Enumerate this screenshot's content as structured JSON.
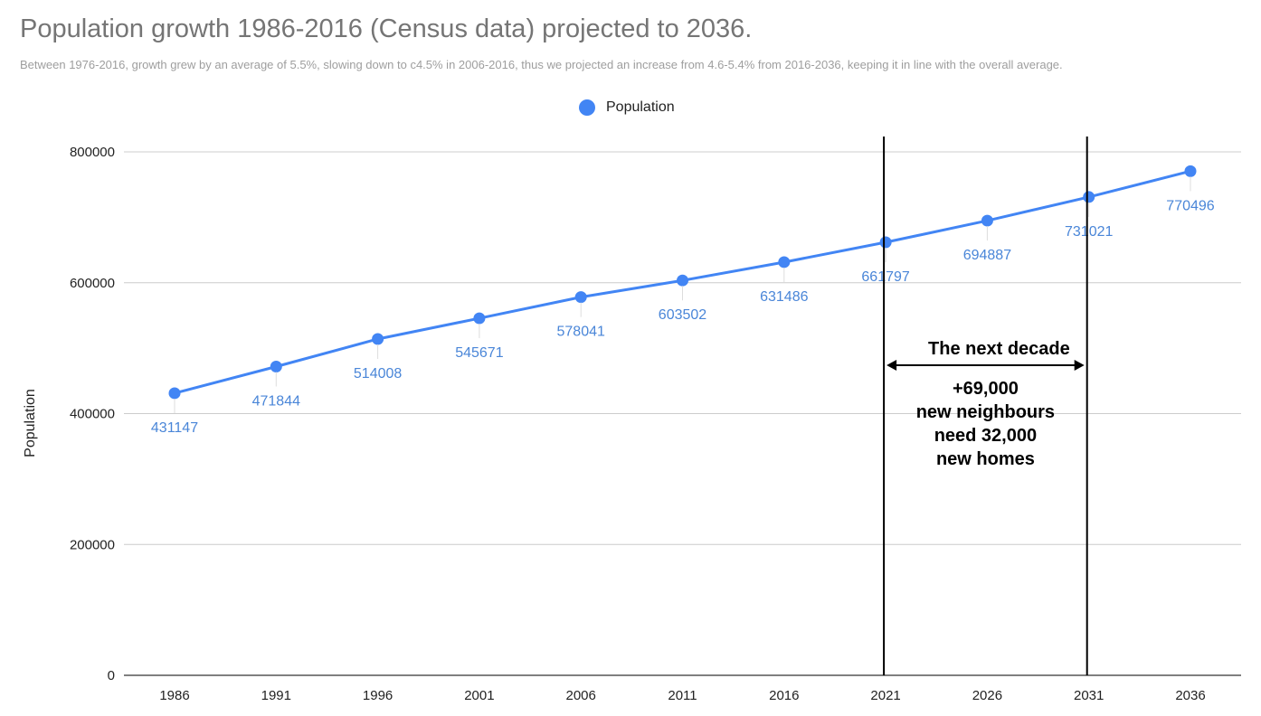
{
  "chart_data": {
    "type": "line",
    "title": "Population growth 1986-2016 (Census data) projected to 2036.",
    "subtitle": "Between 1976-2016, growth grew by an average of 5.5%, slowing down to c4.5% in 2006-2016, thus we projected an increase from 4.6-5.4% from 2016-2036, keeping it in line with the overall average.",
    "xlabel": "",
    "ylabel": "Population",
    "categories": [
      "1986",
      "1991",
      "1996",
      "2001",
      "2006",
      "2011",
      "2016",
      "2021",
      "2026",
      "2031",
      "2036"
    ],
    "series": [
      {
        "name": "Population",
        "values": [
          431147,
          471844,
          514008,
          545671,
          578041,
          603502,
          631486,
          661797,
          694887,
          731021,
          770496
        ],
        "data_labels": [
          "431147",
          "471844",
          "514008",
          "545671",
          "578041",
          "603502",
          "631486",
          "661797",
          "694887",
          "731021",
          "770496"
        ]
      }
    ],
    "ylim": [
      0,
      800000
    ],
    "yticks": [
      0,
      200000,
      400000,
      600000,
      800000
    ],
    "ytick_labels": [
      "0",
      "200000",
      "400000",
      "600000",
      "800000"
    ],
    "grid": true,
    "legend_position": "top-center",
    "series_color": "#4285f4",
    "label_color": "#4a86d8",
    "annotation": {
      "from_category": "2021",
      "to_category": "2031",
      "heading": "The next decade",
      "lines": [
        "+69,000",
        "new neighbours",
        "need 32,000",
        "new homes"
      ]
    }
  }
}
